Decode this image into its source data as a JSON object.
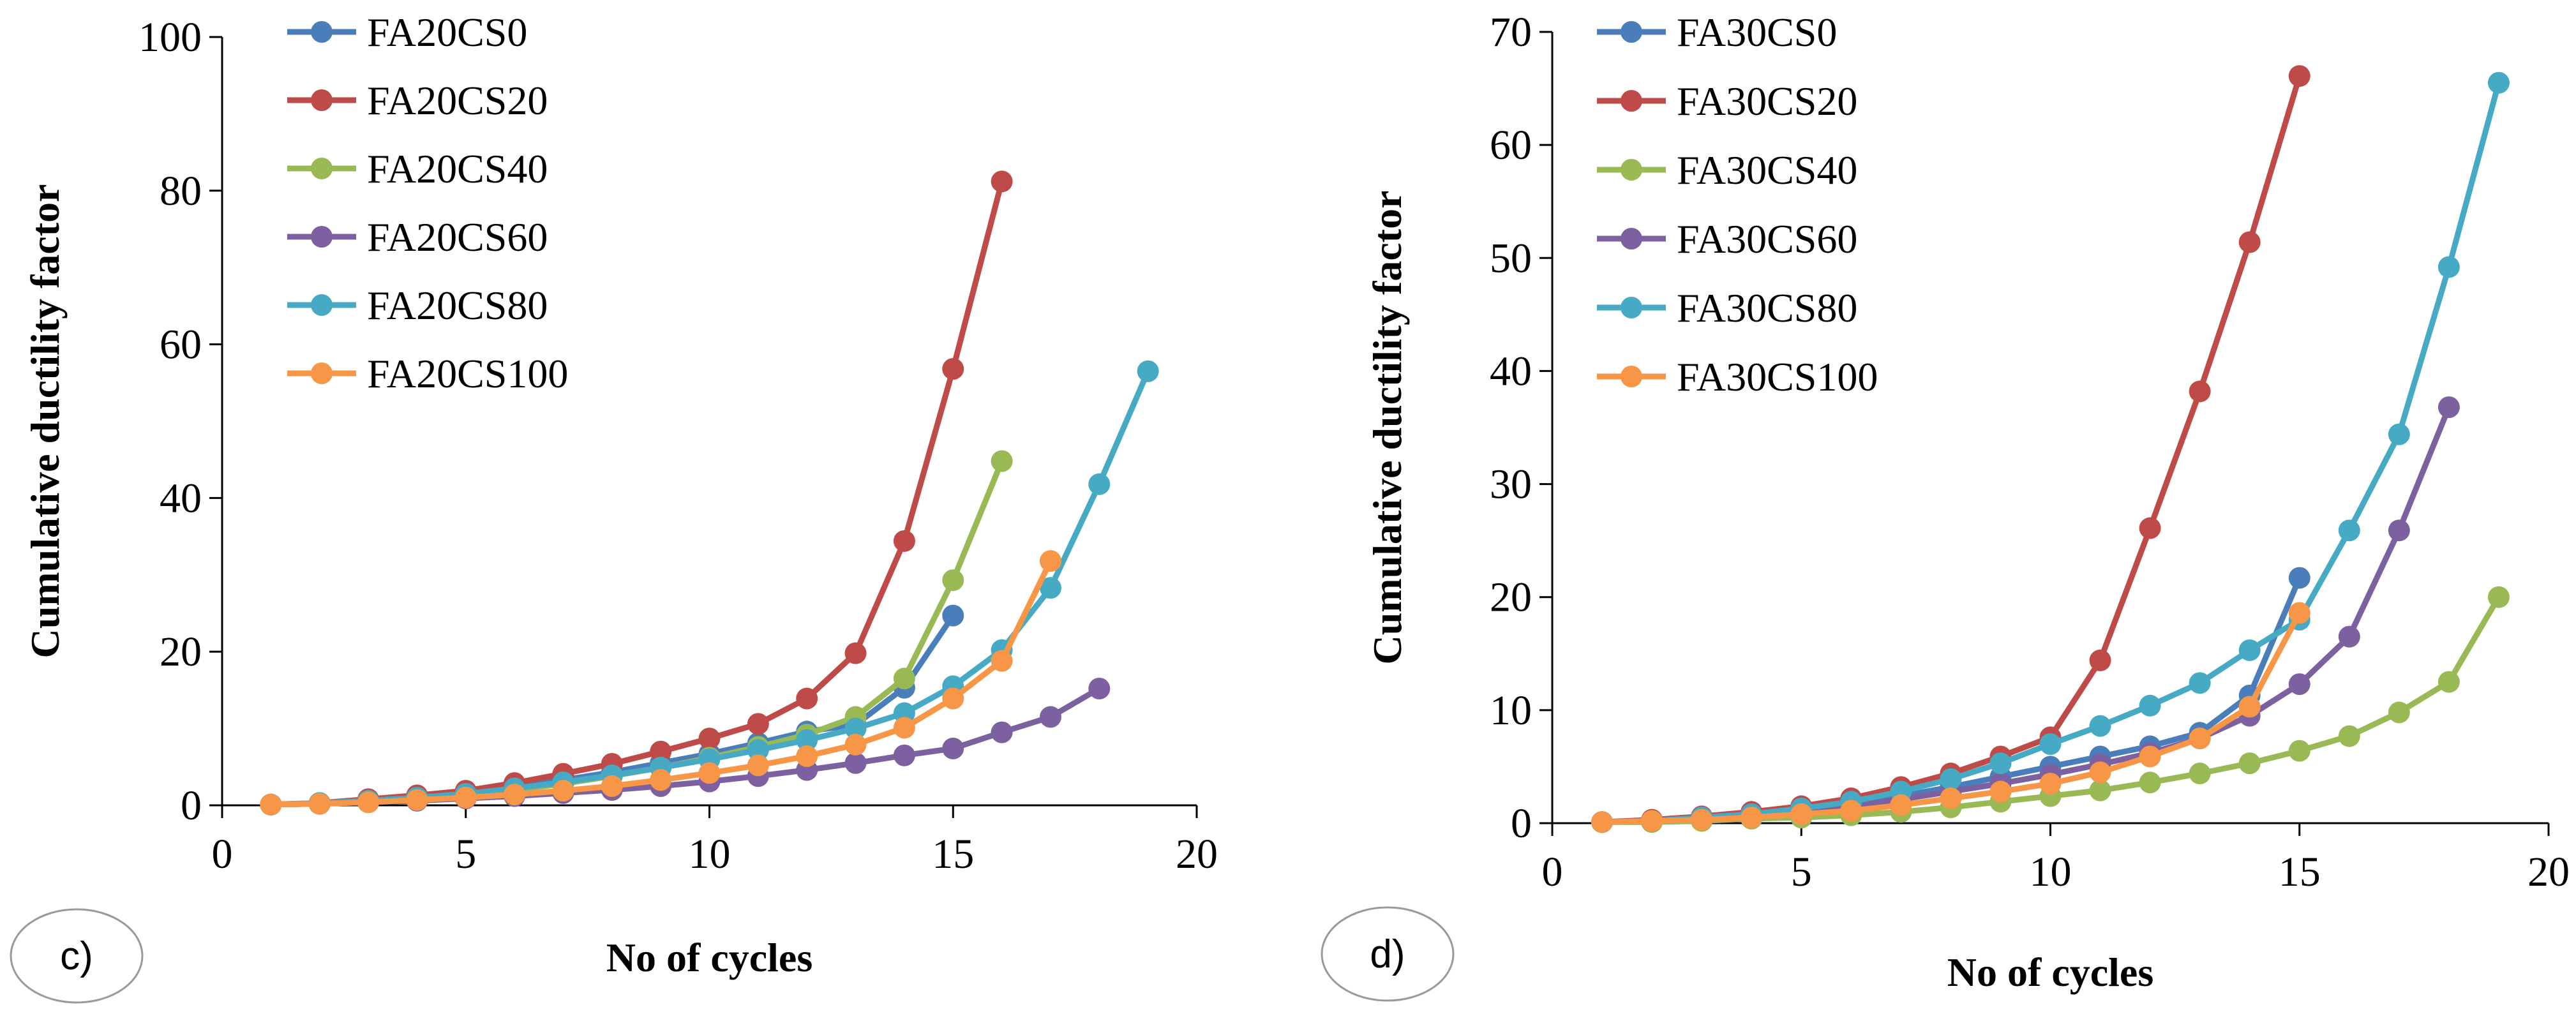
{
  "colors": {
    "s0": "#4a7ebb",
    "s20": "#be4b48",
    "s40": "#98b954",
    "s60": "#7d60a0",
    "s80": "#46aac5",
    "s100": "#f79646"
  },
  "chart_data": [
    {
      "type": "line",
      "panel_label": "c)",
      "xlabel": "No of cycles",
      "ylabel": "Cumulative ductility factor",
      "xlim": [
        0,
        20
      ],
      "ylim": [
        0,
        100
      ],
      "xticks": [
        0,
        5,
        10,
        15,
        20
      ],
      "yticks": [
        0,
        20,
        40,
        60,
        80,
        100
      ],
      "legend_position": "top-left",
      "series": [
        {
          "name": "FA20CS0",
          "color": "s0",
          "x": [
            1,
            2,
            3,
            4,
            5,
            6,
            7,
            8,
            9,
            10,
            11,
            12,
            13,
            14,
            15
          ],
          "y": [
            0.1,
            0.2,
            0.5,
            1.0,
            1.6,
            2.4,
            3.3,
            4.3,
            5.5,
            6.7,
            8.1,
            9.6,
            10.5,
            15.3,
            24.7
          ]
        },
        {
          "name": "FA20CS20",
          "color": "s20",
          "x": [
            1,
            2,
            3,
            4,
            5,
            6,
            7,
            8,
            9,
            10,
            11,
            12,
            13,
            14,
            15,
            16
          ],
          "y": [
            0.1,
            0.3,
            0.8,
            1.3,
            1.9,
            2.9,
            4.1,
            5.4,
            7.0,
            8.7,
            10.6,
            13.9,
            19.8,
            34.4,
            56.8,
            81.2
          ]
        },
        {
          "name": "FA20CS40",
          "color": "s40",
          "x": [
            1,
            2,
            3,
            4,
            5,
            6,
            7,
            8,
            9,
            10,
            11,
            12,
            13,
            14,
            15,
            16
          ],
          "y": [
            0.1,
            0.2,
            0.4,
            0.8,
            1.3,
            2.0,
            2.8,
            3.8,
            4.9,
            6.2,
            7.6,
            9.2,
            11.5,
            16.5,
            29.3,
            44.8
          ]
        },
        {
          "name": "FA20CS60",
          "color": "s60",
          "x": [
            1,
            2,
            3,
            4,
            5,
            6,
            7,
            8,
            9,
            10,
            11,
            12,
            13,
            14,
            15,
            16,
            17,
            18
          ],
          "y": [
            0.1,
            0.2,
            0.4,
            0.6,
            0.9,
            1.2,
            1.6,
            2.0,
            2.5,
            3.1,
            3.8,
            4.6,
            5.5,
            6.5,
            7.4,
            9.5,
            11.5,
            15.2
          ]
        },
        {
          "name": "FA20CS80",
          "color": "s80",
          "x": [
            1,
            2,
            3,
            4,
            5,
            6,
            7,
            8,
            9,
            10,
            11,
            12,
            13,
            14,
            15,
            16,
            17,
            18,
            19
          ],
          "y": [
            0.1,
            0.3,
            0.6,
            1.0,
            1.5,
            2.2,
            3.0,
            3.9,
            4.9,
            6.0,
            7.2,
            8.5,
            10.0,
            12.0,
            15.5,
            20.2,
            28.3,
            41.8,
            56.5
          ]
        },
        {
          "name": "FA20CS100",
          "color": "s100",
          "x": [
            1,
            2,
            3,
            4,
            5,
            6,
            7,
            8,
            9,
            10,
            11,
            12,
            13,
            14,
            15,
            16,
            17
          ],
          "y": [
            0.1,
            0.2,
            0.4,
            0.7,
            1.0,
            1.4,
            1.9,
            2.5,
            3.3,
            4.2,
            5.2,
            6.4,
            7.9,
            10.1,
            13.9,
            18.8,
            31.8
          ]
        }
      ]
    },
    {
      "type": "line",
      "panel_label": "d)",
      "xlabel": "No of cycles",
      "ylabel": "Cumulative ductility factor",
      "xlim": [
        0,
        20
      ],
      "ylim": [
        0,
        70
      ],
      "xticks": [
        0,
        5,
        10,
        15,
        20
      ],
      "yticks": [
        0,
        10,
        20,
        30,
        40,
        50,
        60,
        70
      ],
      "legend_position": "top-left",
      "series": [
        {
          "name": "FA30CS0",
          "color": "s0",
          "x": [
            1,
            2,
            3,
            4,
            5,
            6,
            7,
            8,
            9,
            10,
            11,
            12,
            13,
            14,
            15
          ],
          "y": [
            0.1,
            0.2,
            0.4,
            0.7,
            1.1,
            1.7,
            2.4,
            3.2,
            4.1,
            5.0,
            5.9,
            6.8,
            8.0,
            11.3,
            21.7
          ]
        },
        {
          "name": "FA30CS20",
          "color": "s20",
          "x": [
            1,
            2,
            3,
            4,
            5,
            6,
            7,
            8,
            9,
            10,
            11,
            12,
            13,
            14,
            15
          ],
          "y": [
            0.1,
            0.3,
            0.6,
            1.0,
            1.5,
            2.2,
            3.2,
            4.4,
            5.9,
            7.6,
            14.4,
            26.1,
            38.2,
            51.4,
            66.1
          ]
        },
        {
          "name": "FA30CS40",
          "color": "s40",
          "x": [
            1,
            2,
            3,
            4,
            5,
            6,
            7,
            8,
            9,
            10,
            11,
            12,
            13,
            14,
            15,
            16,
            17,
            18,
            19
          ],
          "y": [
            0.1,
            0.1,
            0.2,
            0.4,
            0.5,
            0.7,
            1.0,
            1.4,
            1.9,
            2.4,
            2.9,
            3.6,
            4.4,
            5.3,
            6.4,
            7.7,
            9.8,
            12.5,
            20.0
          ]
        },
        {
          "name": "FA30CS60",
          "color": "s60",
          "x": [
            1,
            2,
            3,
            4,
            5,
            6,
            7,
            8,
            9,
            10,
            11,
            12,
            13,
            14,
            15,
            16,
            17,
            18
          ],
          "y": [
            0.1,
            0.2,
            0.4,
            0.7,
            1.0,
            1.5,
            2.1,
            2.8,
            3.5,
            4.3,
            5.2,
            6.2,
            7.5,
            9.5,
            12.3,
            16.5,
            25.9,
            36.8
          ]
        },
        {
          "name": "FA30CS80",
          "color": "s80",
          "x": [
            1,
            2,
            3,
            4,
            5,
            6,
            7,
            8,
            9,
            10,
            11,
            12,
            13,
            14,
            15,
            16,
            17,
            18,
            19
          ],
          "y": [
            0.1,
            0.2,
            0.5,
            0.8,
            1.3,
            1.9,
            2.8,
            3.9,
            5.3,
            7.0,
            8.6,
            10.4,
            12.4,
            15.3,
            18.0,
            25.9,
            34.4,
            49.2,
            65.5
          ]
        },
        {
          "name": "FA30CS100",
          "color": "s100",
          "x": [
            1,
            2,
            3,
            4,
            5,
            6,
            7,
            8,
            9,
            10,
            11,
            12,
            13,
            14,
            15
          ],
          "y": [
            0.1,
            0.2,
            0.3,
            0.5,
            0.8,
            1.1,
            1.6,
            2.2,
            2.8,
            3.5,
            4.5,
            5.9,
            7.5,
            10.3,
            18.6
          ]
        }
      ]
    }
  ]
}
